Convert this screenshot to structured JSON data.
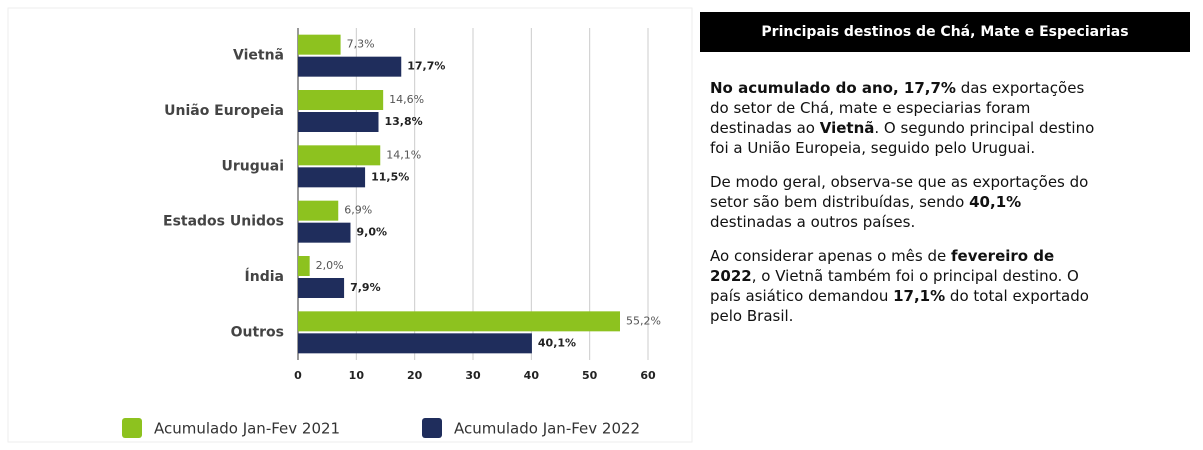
{
  "chart_data": {
    "type": "hbar",
    "categories": [
      "Vietnã",
      "União Europeia",
      "Uruguai",
      "Estados Unidos",
      "Índia",
      "Outros"
    ],
    "series": [
      {
        "name": "Acumulado Jan-Fev 2021",
        "color": "#8dc21f",
        "values": [
          7.3,
          14.6,
          14.1,
          6.9,
          2.0,
          55.2
        ],
        "value_labels": [
          "7,3%",
          "14,6%",
          "14,1%",
          "6,9%",
          "2,0%",
          "55,2%"
        ]
      },
      {
        "name": "Acumulado Jan-Fev 2022",
        "color": "#1f2d5c",
        "values": [
          17.7,
          13.8,
          11.5,
          9.0,
          7.9,
          40.1
        ],
        "value_labels": [
          "17,7%",
          "13,8%",
          "11,5%",
          "9,0%",
          "7,9%",
          "40,1%"
        ]
      }
    ],
    "xlim": [
      0,
      60
    ],
    "xticks": [
      0,
      10,
      20,
      30,
      40,
      50,
      60
    ],
    "grid": true
  },
  "panel": {
    "title": "Principais destinos de Chá, Mate e Especiarias",
    "paragraphs": [
      [
        {
          "text": "No acumulado do ano, 17,7%",
          "bold": true
        },
        {
          "text": " das exportações do setor de Chá, mate e especiarias foram destinadas ao ",
          "bold": false
        },
        {
          "text": "Vietnã",
          "bold": true
        },
        {
          "text": ". O segundo principal destino foi a União Europeia, seguido pelo Uruguai.",
          "bold": false
        }
      ],
      [
        {
          "text": "De modo geral, observa-se que as exportações do setor são bem distribuídas, sendo ",
          "bold": false
        },
        {
          "text": "40,1%",
          "bold": true
        },
        {
          "text": " destinadas a outros países.",
          "bold": false
        }
      ],
      [
        {
          "text": "Ao considerar apenas o mês de ",
          "bold": false
        },
        {
          "text": "fevereiro de 2022",
          "bold": true
        },
        {
          "text": ", o Vietnã também foi o principal destino. O país asiático demandou ",
          "bold": false
        },
        {
          "text": "17,1%",
          "bold": true
        },
        {
          "text": " do total exportado pelo Brasil.",
          "bold": false
        }
      ]
    ]
  }
}
